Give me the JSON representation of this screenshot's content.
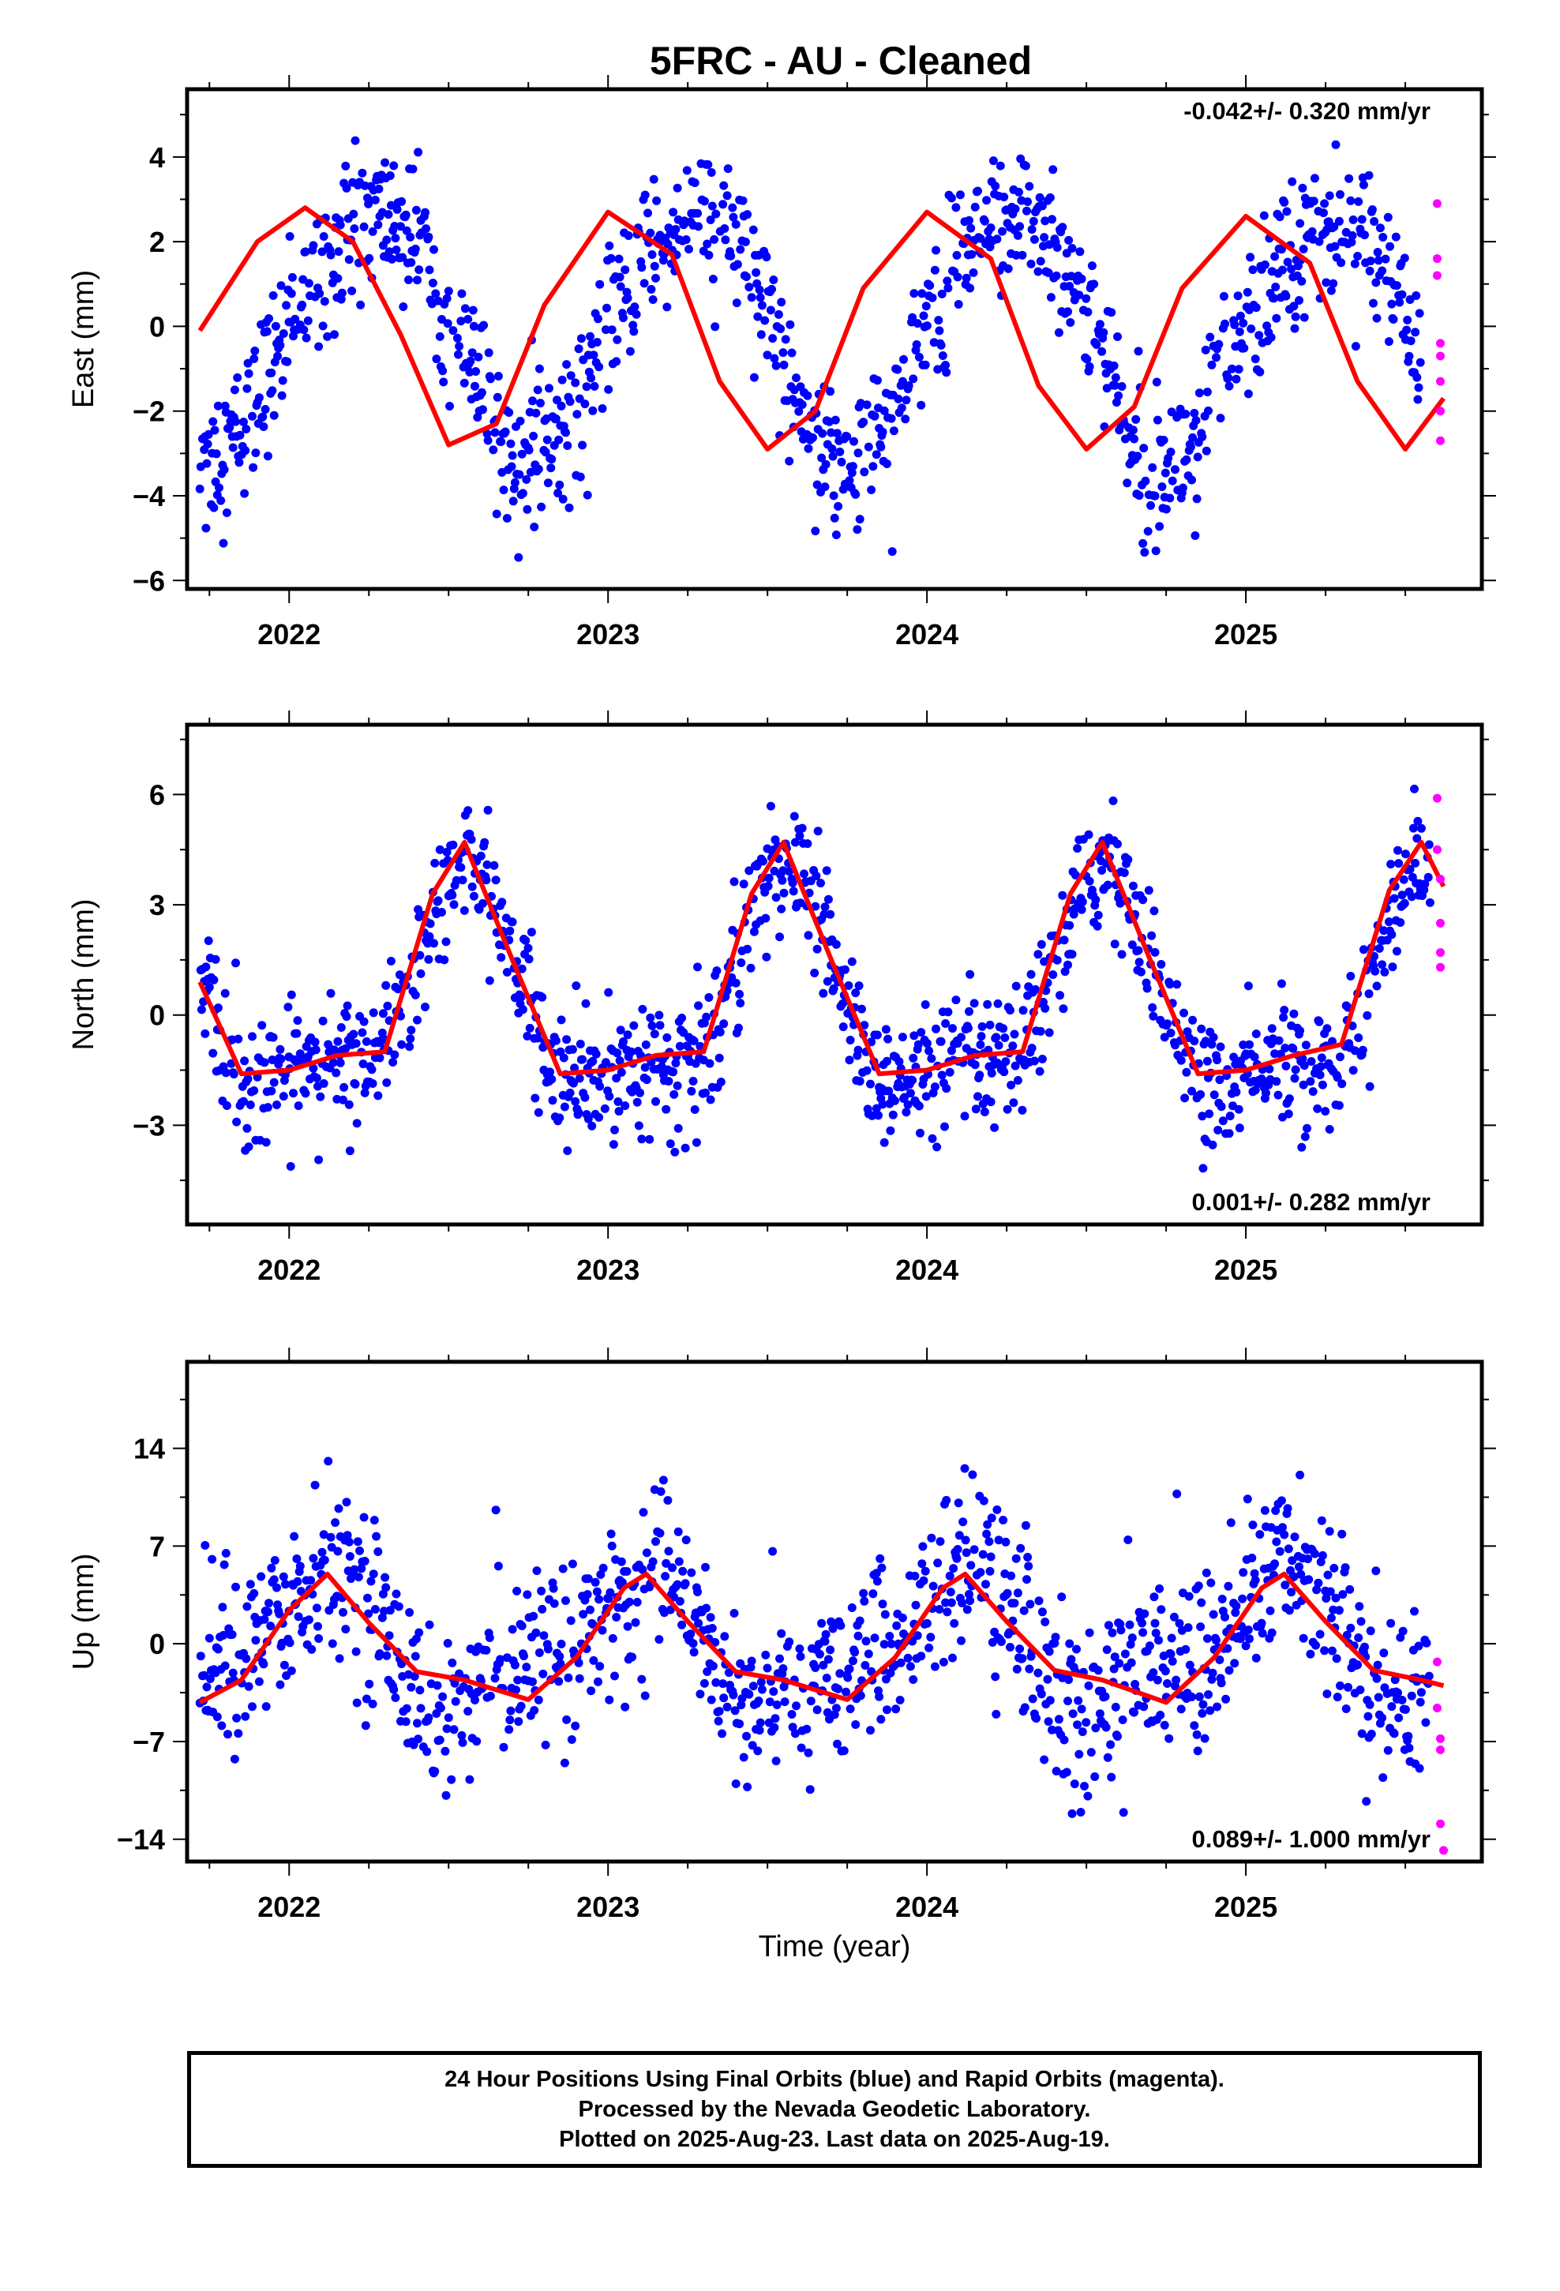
{
  "title": "5FRC  - AU - Cleaned",
  "xlabel": "Time (year)",
  "x_tick_labels": [
    "2022",
    "2023",
    "2024",
    "2025"
  ],
  "footer": {
    "line1": "24 Hour Positions Using Final Orbits (blue) and Rapid Orbits (magenta).",
    "line2": "Processed by the Nevada Geodetic Laboratory.",
    "line3": "Plotted on 2025-Aug-23. Last data on 2025-Aug-19."
  },
  "colors": {
    "final_orbits": "#0000ff",
    "rapid_orbits": "#ff00ff",
    "model_fit": "#ff0000"
  },
  "chart_data": [
    {
      "type": "scatter",
      "id": "east",
      "ylabel": "East (mm)",
      "rate_text": "-0.042+/- 0.320 mm/yr",
      "rate_position": "top-right",
      "xlim": [
        2021.68,
        2025.74
      ],
      "ylim": [
        -6.2,
        5.6
      ],
      "yticks": [
        -6,
        -4,
        -2,
        0,
        2,
        4
      ],
      "ytick_labels": [
        "-6",
        "-4",
        "-2",
        "0",
        "2",
        "4"
      ],
      "xticks": [
        2022,
        2023,
        2024,
        2025
      ],
      "grid": false,
      "model": {
        "offset": -0.1,
        "annual_cos": -0.2,
        "annual_sin": 2.8,
        "semiannual_cos": 0.2,
        "semiannual_sin": -0.1,
        "noise_sd": 0.85,
        "trend_mm_per_yr": -0.042
      },
      "data_range": [
        2021.72,
        2025.55
      ],
      "rapid_points": {
        "x": [
          2025.6,
          2025.6,
          2025.6,
          2025.61,
          2025.61,
          2025.61,
          2025.61,
          2025.61
        ],
        "y": [
          2.9,
          1.6,
          1.2,
          -0.4,
          -0.7,
          -1.3,
          -2.0,
          -2.7
        ]
      },
      "fit_curve": {
        "x": [
          2021.72,
          2021.9,
          2022.05,
          2022.2,
          2022.35,
          2022.5,
          2022.65,
          2022.8,
          2023.0,
          2023.2,
          2023.35,
          2023.5,
          2023.65,
          2023.8,
          2024.0,
          2024.2,
          2024.35,
          2024.5,
          2024.65,
          2024.8,
          2025.0,
          2025.2,
          2025.35,
          2025.5,
          2025.62
        ],
        "y": [
          -0.1,
          2.0,
          2.8,
          2.0,
          -0.2,
          -2.8,
          -2.3,
          0.5,
          2.7,
          1.7,
          -1.3,
          -2.9,
          -2.0,
          0.9,
          2.7,
          1.6,
          -1.4,
          -2.9,
          -1.9,
          0.9,
          2.6,
          1.5,
          -1.3,
          -2.9,
          -1.7
        ]
      }
    },
    {
      "type": "scatter",
      "id": "north",
      "ylabel": "North (mm)",
      "rate_text": "0.001+/- 0.282 mm/yr",
      "rate_position": "bottom-right",
      "xlim": [
        2021.68,
        2025.74
      ],
      "ylim": [
        -5.7,
        7.9
      ],
      "yticks": [
        -3,
        0,
        3,
        6
      ],
      "ytick_labels": [
        "-3",
        "0",
        "3",
        "6"
      ],
      "xticks": [
        2022,
        2023,
        2024,
        2025
      ],
      "grid": false,
      "model": {
        "offset": 0.2,
        "annual_cos": -2.6,
        "annual_sin": -0.8,
        "semiannual_cos": 0.8,
        "semiannual_sin": 0.9,
        "noise_sd": 0.85,
        "trend_mm_per_yr": 0.001
      },
      "data_range": [
        2021.72,
        2025.58
      ],
      "rapid_points": {
        "x": [
          2025.6,
          2025.6,
          2025.61,
          2025.61,
          2025.61,
          2025.61
        ],
        "y": [
          5.9,
          4.5,
          3.7,
          2.5,
          1.7,
          1.3
        ]
      },
      "fit_curve": {
        "x": [
          2021.72,
          2021.85,
          2022.0,
          2022.15,
          2022.3,
          2022.45,
          2022.55,
          2022.7,
          2022.85,
          2023.0,
          2023.15,
          2023.3,
          2023.45,
          2023.55,
          2023.7,
          2023.85,
          2024.0,
          2024.15,
          2024.3,
          2024.45,
          2024.55,
          2024.7,
          2024.85,
          2025.0,
          2025.15,
          2025.3,
          2025.45,
          2025.55,
          2025.62
        ],
        "y": [
          0.9,
          -1.6,
          -1.5,
          -1.1,
          -1.0,
          3.3,
          4.7,
          1.5,
          -1.6,
          -1.5,
          -1.1,
          -1.0,
          3.3,
          4.7,
          1.5,
          -1.6,
          -1.5,
          -1.1,
          -1.0,
          3.3,
          4.7,
          1.5,
          -1.6,
          -1.5,
          -1.1,
          -0.8,
          3.4,
          4.7,
          3.5
        ]
      }
    },
    {
      "type": "scatter",
      "id": "up",
      "ylabel": "Up (mm)",
      "rate_text": "0.089+/- 1.000 mm/yr",
      "rate_position": "bottom-right",
      "xlim": [
        2021.68,
        2025.74
      ],
      "ylim": [
        -15.6,
        20.2
      ],
      "yticks": [
        -14,
        -7,
        0,
        7,
        14
      ],
      "ytick_labels": [
        "-14",
        "-7",
        "0",
        "7",
        "14"
      ],
      "xticks": [
        2022,
        2023,
        2024,
        2025
      ],
      "grid": false,
      "model": {
        "offset": 0.0,
        "annual_cos": 3.6,
        "annual_sin": 2.2,
        "semiannual_cos": -1.0,
        "semiannual_sin": 1.5,
        "noise_sd": 3.1,
        "trend_mm_per_yr": 0.089
      },
      "data_range": [
        2021.72,
        2025.58
      ],
      "rapid_points": {
        "x": [
          2025.6,
          2025.6,
          2025.61,
          2025.61,
          2025.61,
          2025.62
        ],
        "y": [
          -1.3,
          -4.6,
          -6.8,
          -7.6,
          -12.9,
          -14.8
        ]
      },
      "fit_curve": {
        "x": [
          2021.72,
          2021.85,
          2022.0,
          2022.12,
          2022.25,
          2022.4,
          2022.55,
          2022.75,
          2022.9,
          2023.05,
          2023.12,
          2023.25,
          2023.4,
          2023.55,
          2023.75,
          2023.9,
          2024.05,
          2024.12,
          2024.25,
          2024.4,
          2024.55,
          2024.75,
          2024.9,
          2025.05,
          2025.12,
          2025.25,
          2025.4,
          2025.55,
          2025.62
        ],
        "y": [
          -4.2,
          -2.6,
          2.4,
          5.0,
          1.5,
          -2.0,
          -2.6,
          -4.0,
          -1.0,
          4.0,
          5.0,
          1.6,
          -2.0,
          -2.6,
          -4.0,
          -1.0,
          4.0,
          5.0,
          1.6,
          -1.9,
          -2.6,
          -4.2,
          -1.0,
          4.0,
          5.0,
          1.6,
          -1.9,
          -2.6,
          -3.0
        ]
      }
    }
  ]
}
